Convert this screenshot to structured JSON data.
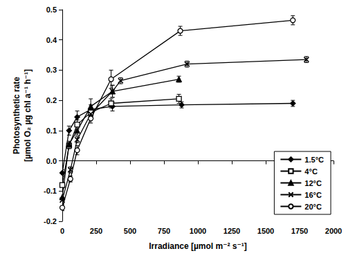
{
  "chart_data": {
    "type": "line",
    "xlabel": "Irradiance [µmol m⁻² s⁻¹]",
    "ylabel": "Photosynthetic rate\n[µmol O₂ µg chl a⁻¹ h⁻¹]",
    "xlim": [
      0,
      2000
    ],
    "xticks": [
      0,
      250,
      500,
      750,
      1000,
      1250,
      1500,
      1750,
      2000
    ],
    "ylim": [
      -0.2,
      0.5
    ],
    "yticks": [
      -0.2,
      -0.1,
      {
        "value": 0,
        "label": "0.0"
      },
      0.1,
      0.2,
      0.3,
      0.4,
      0.5
    ],
    "grid": false,
    "legend": "lower right",
    "series": [
      {
        "name": "1.5°C",
        "color": "#000000",
        "marker": "diamond",
        "x": [
          0,
          50,
          110,
          210,
          370,
          880,
          1700
        ],
        "values": [
          -0.04,
          0.1,
          0.145,
          0.17,
          0.18,
          0.185,
          0.19
        ],
        "errors": [
          0.01,
          0.015,
          0.02,
          0.015,
          0.015,
          0.01,
          0.01
        ]
      },
      {
        "name": "4°C",
        "color": "#000000",
        "marker": "square-open",
        "x": [
          0,
          50,
          110,
          210,
          360,
          860
        ],
        "values": [
          -0.08,
          0.05,
          0.12,
          0.16,
          0.19,
          0.205
        ],
        "errors": [
          0.01,
          0.01,
          0.015,
          0.015,
          0.015,
          0.015
        ]
      },
      {
        "name": "12°C",
        "color": "#000000",
        "marker": "triangle",
        "x": [
          0,
          50,
          110,
          210,
          370,
          860
        ],
        "values": [
          -0.12,
          0.055,
          0.1,
          0.18,
          0.23,
          0.27
        ],
        "errors": [
          0.01,
          0.01,
          0.015,
          0.025,
          0.02,
          0.01
        ]
      },
      {
        "name": "16°C",
        "color": "#000000",
        "marker": "x",
        "x": [
          0,
          60,
          110,
          210,
          370,
          430,
          920,
          1800
        ],
        "values": [
          -0.13,
          -0.03,
          0.07,
          0.155,
          0.23,
          0.265,
          0.32,
          0.335
        ],
        "errors": [
          0.01,
          0.01,
          0.01,
          0.015,
          0.02,
          0.01,
          0.01,
          0.01
        ]
      },
      {
        "name": "20°C",
        "color": "#000000",
        "marker": "circle-open",
        "x": [
          0,
          60,
          110,
          210,
          360,
          870,
          1700
        ],
        "values": [
          -0.155,
          -0.06,
          0.035,
          0.14,
          0.27,
          0.43,
          0.465
        ],
        "errors": [
          0.01,
          0.01,
          0.015,
          0.015,
          0.03,
          0.015,
          0.015
        ]
      }
    ]
  }
}
